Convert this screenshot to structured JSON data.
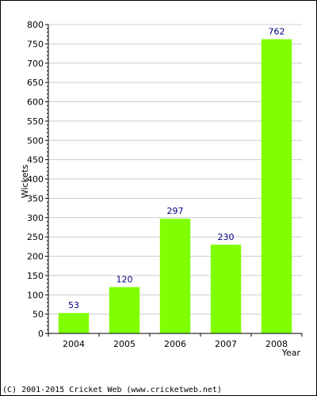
{
  "chart_data": {
    "type": "bar",
    "categories": [
      "2004",
      "2005",
      "2006",
      "2007",
      "2008"
    ],
    "values": [
      53,
      120,
      297,
      230,
      762
    ],
    "data_labels": [
      "53",
      "120",
      "297",
      "230",
      "762"
    ],
    "title": "",
    "xlabel": "Year",
    "ylabel": "Wickets",
    "ylim": [
      0,
      800
    ],
    "yticks": [
      0,
      50,
      100,
      150,
      200,
      250,
      300,
      350,
      400,
      450,
      500,
      550,
      600,
      650,
      700,
      750,
      800
    ],
    "grid": true,
    "legend": "none",
    "bar_color": "#80ff00",
    "value_label_color": "#000080",
    "grid_color": "#cccccc"
  },
  "footer": {
    "credit": "(C) 2001-2015 Cricket Web (www.cricketweb.net)"
  }
}
